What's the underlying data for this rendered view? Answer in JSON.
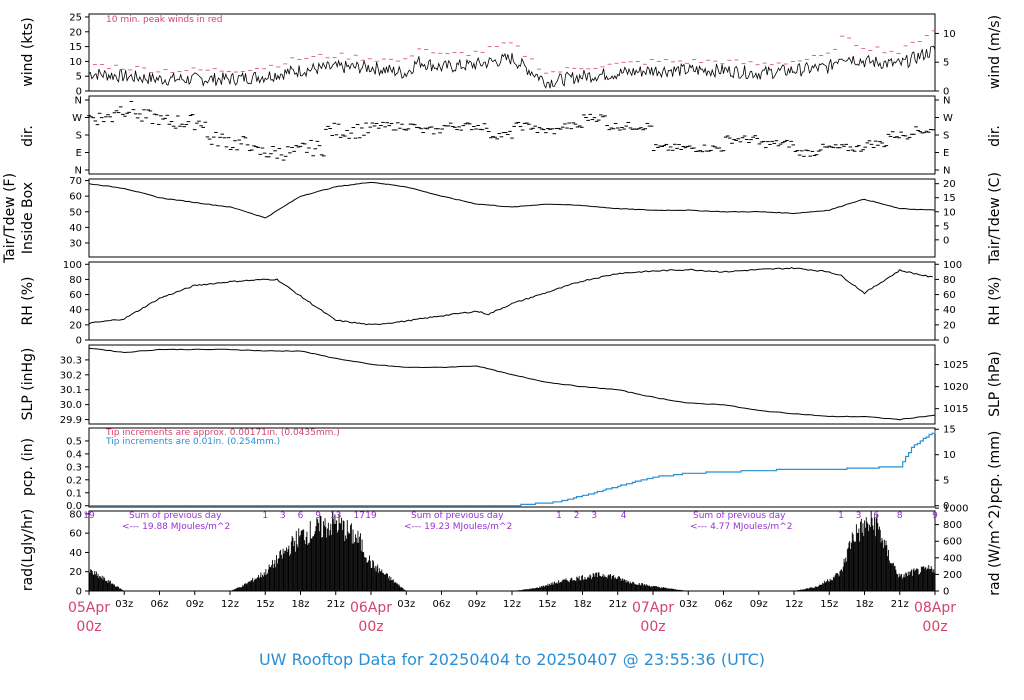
{
  "title": "UW Rooftop Data for 20250404  to  20250407 @ 23:55:36  (UTC)",
  "colors": {
    "red": "#d4446a",
    "blue": "#2a8fd6",
    "purple": "#9a2fd6",
    "black": "#000000"
  },
  "x_axis": {
    "hour_labels": [
      "03z",
      "06z",
      "09z",
      "12z",
      "15z",
      "18z",
      "21z",
      "03z",
      "06z",
      "09z",
      "12z",
      "15z",
      "18z",
      "21z",
      "03z",
      "06z",
      "09z",
      "12z",
      "15z",
      "18z",
      "21z"
    ],
    "day_labels": [
      {
        "date": "05Apr",
        "time": "00z"
      },
      {
        "date": "06Apr",
        "time": "00z"
      },
      {
        "date": "07Apr",
        "time": "00z"
      },
      {
        "date": "08Apr",
        "time": "00z"
      }
    ]
  },
  "panels": {
    "wind": {
      "left_label": "wind (kts)",
      "right_label": "wind (m/s)",
      "note": "10 min. peak winds in red",
      "left_ticks": [
        "25",
        "20",
        "15",
        "10",
        "5",
        "0"
      ],
      "right_ticks": [
        "10",
        "5",
        "0"
      ]
    },
    "dir": {
      "left_label": "dir.",
      "right_label": "dir.",
      "ticks": [
        "N",
        "W",
        "S",
        "E",
        "N"
      ]
    },
    "temp": {
      "left_label": "Tair/Tdew (F)",
      "left_label2": "Inside Box",
      "right_label": "Tair/Tdew (C)",
      "left_ticks": [
        "70",
        "60",
        "50",
        "40",
        "30"
      ],
      "right_ticks": [
        "20",
        "15",
        "10",
        "5",
        "0"
      ]
    },
    "rh": {
      "left_label": "RH (%)",
      "right_label": "RH (%)",
      "ticks": [
        "100",
        "80",
        "60",
        "40",
        "20",
        "0"
      ]
    },
    "slp": {
      "left_label": "SLP (inHg)",
      "right_label": "SLP (hPa)",
      "left_ticks": [
        "30.3",
        "30.2",
        "30.1",
        "30.0",
        "29.9"
      ],
      "right_ticks": [
        "1025",
        "1020",
        "1015"
      ]
    },
    "pcp": {
      "left_label": "pcp. (in)",
      "right_label": "pcp. (mm)",
      "note1": "Tip increments are approx. 0.00171in. (0.0435mm.)",
      "note2": "Tip increments are 0.01in. (0.254mm.)",
      "left_ticks": [
        "0.5",
        "0.4",
        "0.3",
        "0.2",
        "0.1",
        "0.0"
      ],
      "right_ticks": [
        "15",
        "10",
        "5",
        "0"
      ]
    },
    "rad": {
      "left_label": "rad(Lgly/hr)",
      "right_label": "rad (W/m^2)",
      "left_ticks": [
        "80",
        "60",
        "40",
        "20",
        "0"
      ],
      "right_ticks": [
        "1000",
        "800",
        "600",
        "400",
        "200",
        "0"
      ],
      "sums": [
        {
          "line1": "Sum of previous day",
          "line2": "<--- 19.88 MJoules/m^2"
        },
        {
          "line1": "Sum of previous day",
          "line2": "<--- 19.23 MJoules/m^2"
        },
        {
          "line1": "Sum of previous day",
          "line2": "<--- 4.77 MJoules/m^2"
        }
      ],
      "sun_marks": [
        "19",
        "1",
        "3",
        "6",
        "9",
        "13",
        "17",
        "19",
        "1",
        "2",
        "3",
        "4",
        "1",
        "3",
        "6",
        "8",
        "9"
      ]
    }
  },
  "chart_data": {
    "type": "line",
    "x_unit": "hours since 05Apr 00z",
    "xlim": [
      0,
      72
    ],
    "series": [
      {
        "panel": "wind",
        "name": "wind (kts)",
        "x": [
          0,
          3,
          6,
          9,
          12,
          15,
          18,
          21,
          24,
          27,
          28,
          30,
          33,
          36,
          39,
          42,
          45,
          48,
          51,
          54,
          57,
          60,
          63,
          64,
          66,
          69,
          72
        ],
        "values": [
          6,
          5,
          4,
          4,
          4,
          5,
          7,
          8,
          8,
          6,
          10,
          8,
          9,
          11,
          3,
          5,
          6,
          7,
          7,
          7,
          6,
          7,
          8,
          12,
          10,
          9,
          14
        ]
      },
      {
        "panel": "wind",
        "name": "10 min. peak winds",
        "x": [
          0,
          3,
          6,
          9,
          12,
          15,
          18,
          21,
          24,
          27,
          28,
          30,
          33,
          36,
          39,
          42,
          45,
          48,
          51,
          54,
          57,
          60,
          63,
          64,
          66,
          69,
          72
        ],
        "values": [
          9,
          8,
          7,
          7,
          7,
          8,
          11,
          12,
          11,
          10,
          15,
          12,
          13,
          16,
          6,
          8,
          9,
          10,
          10,
          10,
          9,
          10,
          12,
          18,
          15,
          13,
          21
        ]
      },
      {
        "panel": "dir",
        "name": "direction",
        "x": [
          0,
          2,
          4,
          6,
          8,
          10,
          12,
          14,
          16,
          18,
          20,
          24,
          26,
          28,
          30,
          34,
          36,
          38,
          40,
          42,
          44,
          46,
          48,
          51,
          54,
          57,
          60,
          62,
          64,
          66,
          68,
          70,
          72
        ],
        "values": [
          "W",
          "NW",
          "W",
          "WSW",
          "WSW",
          "SSE",
          "SE",
          "E",
          "E",
          "ESE",
          "SSW",
          "SW",
          "SW",
          "SSW",
          "SW",
          "S",
          "SW",
          "SSW",
          "SW",
          "W",
          "SW",
          "SW",
          "ESE",
          "ESE",
          "SSE",
          "SE",
          "E",
          "ESE",
          "ESE",
          "SE",
          "S",
          "SSW",
          "S"
        ]
      },
      {
        "panel": "temp",
        "name": "Tair (F)",
        "x": [
          0,
          3,
          6,
          9,
          12,
          13,
          15,
          18,
          21,
          24,
          27,
          30,
          33,
          36,
          39,
          42,
          45,
          48,
          51,
          54,
          57,
          60,
          63,
          65,
          66,
          69,
          72
        ],
        "values": [
          68,
          65,
          59,
          56,
          53,
          51,
          46,
          60,
          66,
          69,
          66,
          60,
          55,
          53,
          55,
          54,
          52,
          51,
          51,
          50,
          50,
          49,
          51,
          56,
          58,
          52,
          51
        ]
      },
      {
        "panel": "rh",
        "name": "RH (%)",
        "x": [
          0,
          3,
          6,
          9,
          12,
          15,
          16,
          18,
          21,
          24,
          27,
          30,
          33,
          34,
          36,
          39,
          42,
          45,
          48,
          51,
          54,
          57,
          60,
          63,
          64,
          66,
          69,
          72
        ],
        "values": [
          22,
          28,
          55,
          72,
          77,
          80,
          80,
          58,
          26,
          20,
          25,
          32,
          38,
          34,
          48,
          63,
          78,
          88,
          91,
          93,
          90,
          93,
          95,
          90,
          85,
          62,
          92,
          82
        ]
      },
      {
        "panel": "slp",
        "name": "SLP (inHg)",
        "x": [
          0,
          3,
          6,
          9,
          12,
          15,
          18,
          21,
          24,
          27,
          30,
          33,
          36,
          39,
          42,
          45,
          48,
          51,
          54,
          57,
          60,
          63,
          66,
          69,
          72
        ],
        "values": [
          30.38,
          30.35,
          30.37,
          30.37,
          30.37,
          30.36,
          30.36,
          30.31,
          30.27,
          30.25,
          30.25,
          30.26,
          30.2,
          30.15,
          30.12,
          30.1,
          30.05,
          30.01,
          30.0,
          29.96,
          29.94,
          29.92,
          29.92,
          29.9,
          29.93
        ]
      },
      {
        "panel": "pcp",
        "name": "pcp. (in)",
        "x": [
          0,
          36,
          40,
          43,
          45,
          48,
          51,
          54,
          57,
          60,
          63,
          66,
          68,
          69,
          70,
          72
        ],
        "values": [
          0,
          0,
          0.03,
          0.1,
          0.15,
          0.22,
          0.25,
          0.26,
          0.27,
          0.28,
          0.28,
          0.29,
          0.3,
          0.3,
          0.45,
          0.58
        ]
      },
      {
        "panel": "rad",
        "name": "rad (Lgly/hr)",
        "x": [
          0,
          2,
          3,
          12,
          13,
          15,
          18,
          20,
          21,
          23,
          24,
          27,
          36,
          38,
          40,
          42,
          44,
          46,
          48,
          51,
          60,
          62,
          64,
          65,
          66,
          67,
          68,
          69,
          70,
          72
        ],
        "values": [
          22,
          8,
          0,
          0,
          5,
          20,
          60,
          70,
          75,
          55,
          30,
          0,
          0,
          3,
          10,
          15,
          18,
          10,
          5,
          0,
          0,
          5,
          20,
          60,
          70,
          75,
          40,
          15,
          20,
          25
        ]
      }
    ]
  }
}
